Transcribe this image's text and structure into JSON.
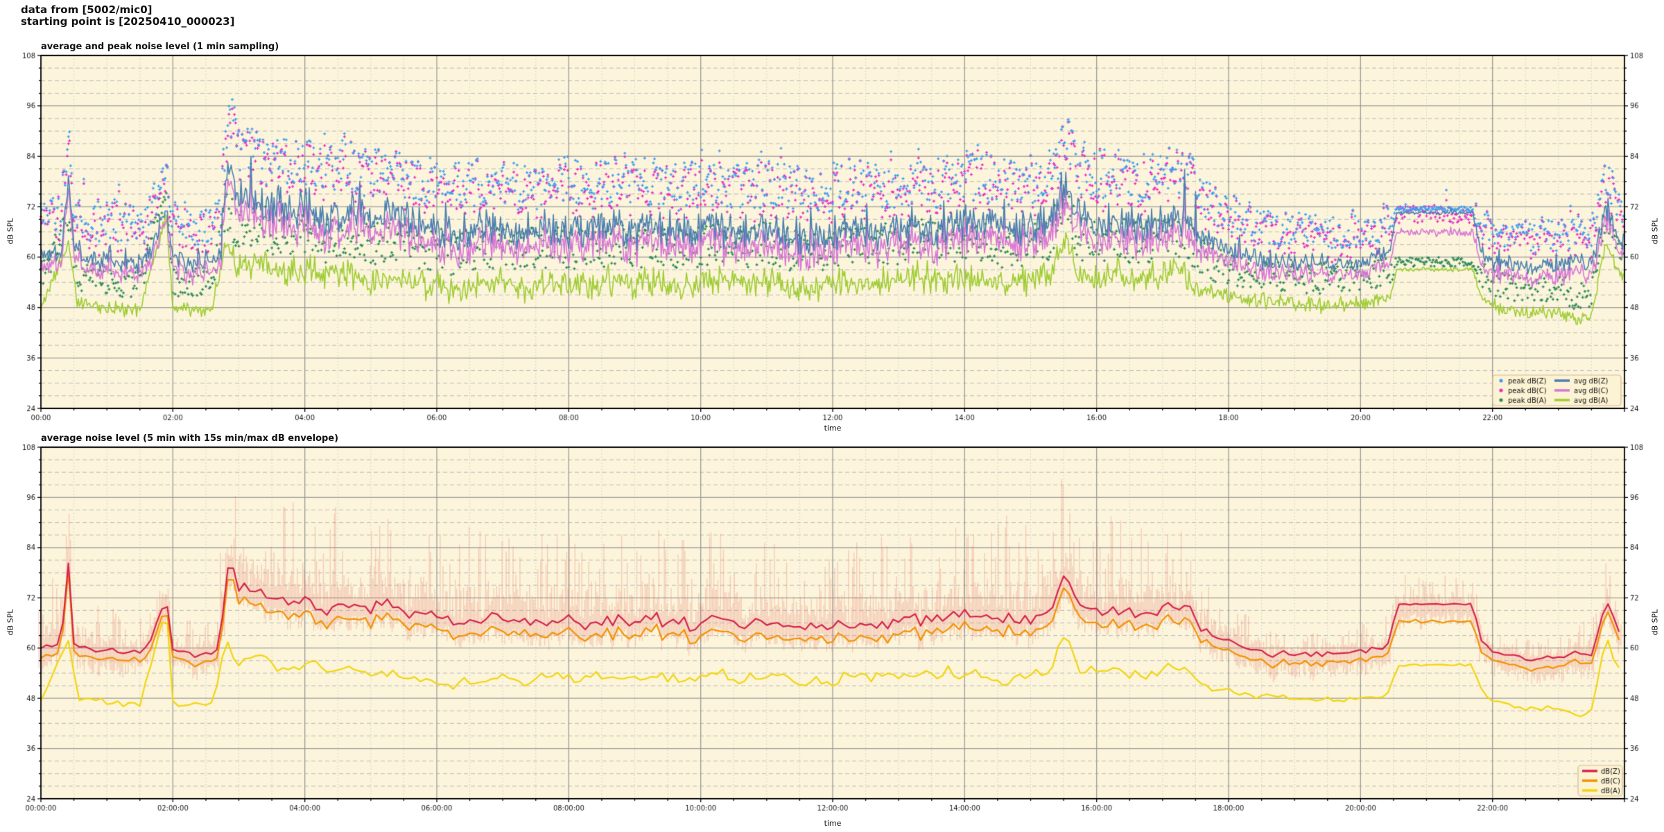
{
  "header": {
    "line1": "data from [5002/mic0]",
    "line2": "starting point is [20250410_000023]"
  },
  "colors": {
    "figure_bg": "#ffffff",
    "plot_bg": "#FCF5DB",
    "grid_major": "#9a9a9a",
    "grid_minor_y": "#b8b8b8",
    "grid_minor_x": "#cccccc",
    "spine": "#000000",
    "tick_text": "#1a1a1a",
    "legend_bg": "#FCF3D4",
    "legend_border": "#D8BA8E",
    "avg_dbz": "#4A7FB0",
    "avg_dbc": "#D976D6",
    "avg_dba": "#9FCC33",
    "peak_dbz": "#3E9EF0",
    "peak_dbc": "#E92EC6",
    "peak_dba": "#2E8B57",
    "dbz": "#D6224C",
    "dbc": "#F39200",
    "dba": "#F2D50F",
    "envelope": "rgba(228,110,100,0.30)"
  },
  "chart_data": [
    {
      "type": "line+scatter",
      "title": "average and peak noise level (1 min sampling)",
      "xlabel": "time",
      "ylabel": "dB SPL",
      "ylim": [
        24,
        108
      ],
      "yticks": [
        24,
        36,
        48,
        60,
        72,
        84,
        96,
        108
      ],
      "y_minor_step": 3,
      "xlim_hours": [
        0,
        24
      ],
      "xtick_hours": [
        0,
        2,
        4,
        6,
        8,
        10,
        12,
        14,
        16,
        18,
        20,
        22
      ],
      "xtick_labels": [
        "00:00",
        "02:00",
        "04:00",
        "06:00",
        "08:00",
        "10:00",
        "12:00",
        "14:00",
        "16:00",
        "18:00",
        "20:00",
        "22:00"
      ],
      "x_minor_step_hours": 0.5,
      "grid": true,
      "legend_position": "lower right",
      "legend_columns": [
        [
          {
            "label": "peak dB(Z)",
            "color_key": "peak_dbz",
            "marker": "dot"
          },
          {
            "label": "peak dB(C)",
            "color_key": "peak_dbc",
            "marker": "dot"
          },
          {
            "label": "peak dB(A)",
            "color_key": "peak_dba",
            "marker": "dot"
          }
        ],
        [
          {
            "label": "avg dB(Z)",
            "color_key": "avg_dbz",
            "marker": "line"
          },
          {
            "label": "avg dB(C)",
            "color_key": "avg_dbc",
            "marker": "line"
          },
          {
            "label": "avg dB(A)",
            "color_key": "avg_dba",
            "marker": "line"
          }
        ]
      ],
      "sampling_minutes": 1,
      "seed": 20250410,
      "series_model": {
        "avg_dbz_keyframes": [
          [
            0,
            60
          ],
          [
            0.3,
            61
          ],
          [
            0.42,
            80
          ],
          [
            0.5,
            62
          ],
          [
            0.8,
            59
          ],
          [
            1,
            60
          ],
          [
            1.3,
            58.5
          ],
          [
            1.6,
            59.5
          ],
          [
            1.9,
            72
          ],
          [
            2,
            60
          ],
          [
            2.3,
            58.5
          ],
          [
            2.6,
            59
          ],
          [
            2.72,
            60
          ],
          [
            2.8,
            79
          ],
          [
            2.9,
            81
          ],
          [
            3,
            74
          ],
          [
            3.2,
            75
          ],
          [
            3.4,
            71
          ],
          [
            3.6,
            73
          ],
          [
            3.8,
            70
          ],
          [
            4,
            72
          ],
          [
            4.3,
            69
          ],
          [
            4.6,
            71
          ],
          [
            5,
            69
          ],
          [
            5.3,
            70
          ],
          [
            5.6,
            68
          ],
          [
            6,
            67
          ],
          [
            6.3,
            65.5
          ],
          [
            6.6,
            66.5
          ],
          [
            7,
            67.5
          ],
          [
            7.3,
            65.5
          ],
          [
            7.6,
            66.5
          ],
          [
            8,
            67
          ],
          [
            8.3,
            66
          ],
          [
            8.6,
            67.5
          ],
          [
            9,
            66.5
          ],
          [
            9.3,
            67.5
          ],
          [
            9.6,
            65.5
          ],
          [
            10,
            66.5
          ],
          [
            10.3,
            67.5
          ],
          [
            10.6,
            65.5
          ],
          [
            11,
            66.5
          ],
          [
            11.3,
            65.5
          ],
          [
            11.6,
            64.5
          ],
          [
            12,
            65.5
          ],
          [
            12.3,
            66.5
          ],
          [
            12.6,
            65.5
          ],
          [
            13,
            66.5
          ],
          [
            13.3,
            67.5
          ],
          [
            13.6,
            66.5
          ],
          [
            14,
            68.5
          ],
          [
            14.3,
            67.5
          ],
          [
            14.6,
            66.5
          ],
          [
            15,
            67.5
          ],
          [
            15.3,
            69
          ],
          [
            15.55,
            78
          ],
          [
            15.7,
            70
          ],
          [
            16,
            68.5
          ],
          [
            16.3,
            69.5
          ],
          [
            16.6,
            67.5
          ],
          [
            17,
            69.5
          ],
          [
            17.2,
            70.5
          ],
          [
            17.4,
            69
          ],
          [
            17.6,
            64
          ],
          [
            18,
            62
          ],
          [
            18.3,
            60
          ],
          [
            18.6,
            59
          ],
          [
            19,
            58.5
          ],
          [
            19.3,
            59
          ],
          [
            19.6,
            58.5
          ],
          [
            20,
            59
          ],
          [
            20.3,
            60
          ],
          [
            20.45,
            62
          ],
          [
            20.55,
            70.5
          ],
          [
            21.7,
            70.5
          ],
          [
            21.82,
            62
          ],
          [
            22,
            59
          ],
          [
            22.3,
            58
          ],
          [
            22.6,
            57.5
          ],
          [
            23,
            58
          ],
          [
            23.3,
            59
          ],
          [
            23.5,
            58
          ],
          [
            23.72,
            71
          ],
          [
            23.82,
            68
          ],
          [
            24,
            61
          ]
        ],
        "jitter_keyframes": [
          [
            0,
            3
          ],
          [
            2.6,
            3
          ],
          [
            2.8,
            5.5
          ],
          [
            17.4,
            5.5
          ],
          [
            17.8,
            3
          ],
          [
            20.3,
            2.5
          ],
          [
            20.5,
            0.6
          ],
          [
            21.7,
            0.6
          ],
          [
            21.9,
            2.4
          ],
          [
            23.6,
            2.4
          ],
          [
            23.8,
            3
          ],
          [
            24,
            3
          ]
        ],
        "dbc_offset_keyframes": [
          [
            0,
            1.8
          ],
          [
            2.6,
            1.8
          ],
          [
            3,
            3
          ],
          [
            17.4,
            3
          ],
          [
            18,
            2
          ],
          [
            20.4,
            2
          ],
          [
            20.55,
            4
          ],
          [
            21.7,
            4
          ],
          [
            21.9,
            2
          ],
          [
            24,
            2
          ]
        ],
        "avg_dba_keyframes": [
          [
            0,
            48.5
          ],
          [
            0.42,
            63
          ],
          [
            0.55,
            49
          ],
          [
            1,
            48
          ],
          [
            1.5,
            47.5
          ],
          [
            1.9,
            70
          ],
          [
            2,
            48
          ],
          [
            2.6,
            47.5
          ],
          [
            2.8,
            64
          ],
          [
            3,
            57
          ],
          [
            3.3,
            59
          ],
          [
            3.6,
            56
          ],
          [
            4,
            57.5
          ],
          [
            4.3,
            55
          ],
          [
            4.6,
            56.5
          ],
          [
            5,
            54.5
          ],
          [
            5.3,
            55.5
          ],
          [
            5.6,
            53.5
          ],
          [
            6,
            53
          ],
          [
            6.3,
            52
          ],
          [
            6.6,
            53
          ],
          [
            7,
            54
          ],
          [
            7.3,
            52.5
          ],
          [
            7.6,
            53.5
          ],
          [
            8,
            54
          ],
          [
            8.3,
            53
          ],
          [
            8.6,
            54.5
          ],
          [
            9,
            53.5
          ],
          [
            9.3,
            54.5
          ],
          [
            9.6,
            53
          ],
          [
            10,
            54
          ],
          [
            10.3,
            55
          ],
          [
            10.6,
            53.5
          ],
          [
            11,
            54.5
          ],
          [
            11.3,
            53.5
          ],
          [
            11.6,
            52.5
          ],
          [
            12,
            53.5
          ],
          [
            12.3,
            54.5
          ],
          [
            12.6,
            53.5
          ],
          [
            13,
            54.5
          ],
          [
            13.3,
            55.5
          ],
          [
            13.6,
            54.5
          ],
          [
            14,
            55.5
          ],
          [
            14.3,
            54.5
          ],
          [
            14.6,
            53.5
          ],
          [
            15,
            54.5
          ],
          [
            15.3,
            56
          ],
          [
            15.55,
            65
          ],
          [
            15.7,
            56
          ],
          [
            16,
            55
          ],
          [
            16.3,
            56
          ],
          [
            16.6,
            54.5
          ],
          [
            17,
            56
          ],
          [
            17.2,
            57
          ],
          [
            17.4,
            55
          ],
          [
            17.6,
            52
          ],
          [
            18,
            50.5
          ],
          [
            18.5,
            49.5
          ],
          [
            19,
            49
          ],
          [
            19.5,
            48.5
          ],
          [
            20,
            49
          ],
          [
            20.3,
            49.5
          ],
          [
            20.45,
            51
          ],
          [
            20.55,
            57
          ],
          [
            21.7,
            57
          ],
          [
            21.82,
            51
          ],
          [
            22,
            48.5
          ],
          [
            22.5,
            46.5
          ],
          [
            23,
            47
          ],
          [
            23.3,
            44.5
          ],
          [
            23.5,
            46
          ],
          [
            23.72,
            64
          ],
          [
            23.85,
            58
          ],
          [
            24,
            55
          ]
        ],
        "dba_jitter_keyframes": [
          [
            0,
            2.2
          ],
          [
            2.6,
            2.2
          ],
          [
            2.8,
            4.2
          ],
          [
            17.4,
            4.2
          ],
          [
            17.8,
            2.4
          ],
          [
            20.3,
            2
          ],
          [
            20.5,
            0.7
          ],
          [
            21.7,
            0.7
          ],
          [
            21.9,
            2
          ],
          [
            24,
            2
          ]
        ],
        "peak_offset_keyframes": [
          [
            0,
            14
          ],
          [
            2.6,
            14
          ],
          [
            2.9,
            17
          ],
          [
            17.4,
            17
          ],
          [
            18,
            12
          ],
          [
            20.4,
            12
          ],
          [
            20.55,
            1.5
          ],
          [
            21.7,
            1.5
          ],
          [
            21.9,
            11
          ],
          [
            23.6,
            11
          ],
          [
            23.8,
            13
          ],
          [
            24,
            11
          ]
        ],
        "peak_dba_offset_keyframes": [
          [
            0,
            10
          ],
          [
            2.6,
            10
          ],
          [
            2.9,
            14
          ],
          [
            17.4,
            14
          ],
          [
            18,
            10
          ],
          [
            20.4,
            10
          ],
          [
            20.55,
            3
          ],
          [
            21.7,
            3
          ],
          [
            21.9,
            9
          ],
          [
            24,
            9
          ]
        ]
      }
    },
    {
      "type": "line+band",
      "title": "average noise level (5 min with 15s min/max dB envelope)",
      "xlabel": "time",
      "ylabel": "dB SPL",
      "ylim": [
        24,
        108
      ],
      "yticks": [
        24,
        36,
        48,
        60,
        72,
        84,
        96,
        108
      ],
      "y_minor_step": 3,
      "xlim_hours": [
        0,
        24
      ],
      "xtick_hours": [
        0,
        2,
        4,
        6,
        8,
        10,
        12,
        14,
        16,
        18,
        20,
        22
      ],
      "xtick_labels": [
        "00:00:00",
        "02:00:00",
        "04:00:00",
        "06:00:00",
        "08:00:00",
        "10:00:00",
        "12:00:00",
        "14:00:00",
        "16:00:00",
        "18:00:00",
        "20:00:00",
        "22:00:00"
      ],
      "x_minor_step_hours": 0.5,
      "grid": true,
      "legend_position": "lower right",
      "legend": [
        {
          "label": "dB(Z)",
          "color_key": "dbz",
          "marker": "line"
        },
        {
          "label": "dB(C)",
          "color_key": "dbc",
          "marker": "line"
        },
        {
          "label": "dB(A)",
          "color_key": "dba",
          "marker": "line"
        }
      ],
      "sampling_minutes": 5,
      "seed": 4100023,
      "envelope_amp_keyframes": [
        [
          0,
          12
        ],
        [
          0.25,
          20
        ],
        [
          0.5,
          13
        ],
        [
          1,
          10
        ],
        [
          2,
          9
        ],
        [
          2.6,
          9
        ],
        [
          2.9,
          24
        ],
        [
          8,
          22
        ],
        [
          12,
          20
        ],
        [
          15,
          24
        ],
        [
          17,
          22
        ],
        [
          17.5,
          16
        ],
        [
          18,
          9
        ],
        [
          19,
          7
        ],
        [
          20.4,
          7
        ],
        [
          21.7,
          7
        ],
        [
          22,
          5
        ],
        [
          23,
          5
        ],
        [
          23.7,
          11
        ],
        [
          24,
          9
        ]
      ]
    }
  ]
}
